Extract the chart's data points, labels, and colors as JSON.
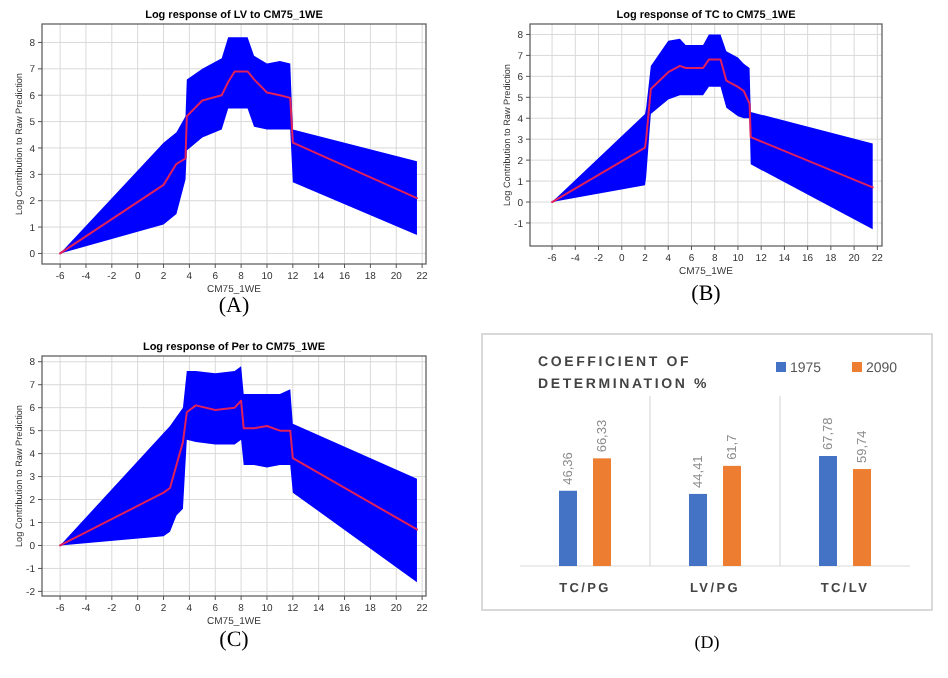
{
  "chart_data": [
    {
      "type": "line",
      "title": "Log response of LV to CM75_1WE",
      "xlabel": "CM75_1WE",
      "ylabel": "Log Contribution to Raw Prediction",
      "annotations": [
        "(A)"
      ],
      "xlim": [
        -7.4,
        22.3
      ],
      "ylim": [
        -0.4,
        8.7
      ],
      "xticks": [
        -6,
        -4,
        -2,
        0,
        2,
        4,
        6,
        8,
        10,
        12,
        14,
        16,
        18,
        20,
        22
      ],
      "yticks": [
        0,
        1,
        2,
        3,
        4,
        5,
        6,
        7,
        8
      ],
      "grid": true,
      "x": [
        -6,
        2,
        3,
        3.7,
        3.8,
        5,
        6.5,
        7,
        7.5,
        8.5,
        9,
        10,
        11,
        11.8,
        12,
        21.6
      ],
      "series": [
        {
          "color": "#e0205a",
          "values": [
            0,
            2.6,
            3.4,
            3.6,
            5.2,
            5.8,
            6.0,
            6.5,
            6.9,
            6.9,
            6.6,
            6.1,
            6.0,
            5.9,
            4.2,
            2.1
          ],
          "upper": [
            0,
            4.2,
            4.6,
            5.2,
            6.6,
            7.0,
            7.4,
            8.2,
            8.2,
            8.2,
            7.5,
            7.2,
            7.3,
            7.2,
            4.7,
            3.5
          ],
          "lower": [
            0,
            1.1,
            1.5,
            2.8,
            3.9,
            4.4,
            4.7,
            5.5,
            5.5,
            5.5,
            4.8,
            4.7,
            4.7,
            4.7,
            2.7,
            0.7
          ]
        }
      ]
    },
    {
      "type": "line",
      "title": "Log response of TC to CM75_1WE",
      "xlabel": "CM75_1WE",
      "ylabel": "Log Contribution to Raw Prediction",
      "annotations": [
        "(B)"
      ],
      "xlim": [
        -7.9,
        22.4
      ],
      "ylim": [
        -2.1,
        8.5
      ],
      "xticks": [
        -6,
        -4,
        -2,
        0,
        2,
        4,
        6,
        8,
        10,
        12,
        14,
        16,
        18,
        20,
        22
      ],
      "yticks": [
        -1,
        0,
        1,
        2,
        3,
        4,
        5,
        6,
        7,
        8
      ],
      "grid": true,
      "x": [
        -6,
        2,
        2.1,
        2.5,
        4,
        5,
        5.5,
        7,
        7.5,
        8.5,
        9,
        10,
        10.5,
        11,
        11.1,
        21.6
      ],
      "series": [
        {
          "color": "#e0205a",
          "values": [
            0,
            2.6,
            3.0,
            5.4,
            6.2,
            6.5,
            6.4,
            6.4,
            6.8,
            6.8,
            5.8,
            5.5,
            5.3,
            4.7,
            3.1,
            0.7
          ],
          "upper": [
            0,
            4.2,
            4.5,
            6.5,
            7.7,
            7.8,
            7.5,
            7.5,
            8.0,
            8.0,
            7.2,
            6.9,
            6.6,
            6.4,
            4.3,
            2.8
          ],
          "lower": [
            0,
            0.8,
            1.2,
            4.2,
            4.9,
            5.1,
            5.1,
            5.1,
            5.5,
            5.5,
            4.5,
            4.1,
            4.0,
            4.0,
            1.8,
            -1.3
          ]
        }
      ]
    },
    {
      "type": "line",
      "title": "Log response of Per to CM75_1WE",
      "xlabel": "CM75_1WE",
      "ylabel": "Log Contribution to Raw Prediction",
      "annotations": [
        "(C)"
      ],
      "xlim": [
        -7.4,
        22.3
      ],
      "ylim": [
        -2.2,
        8.25
      ],
      "xticks": [
        -6,
        -4,
        -2,
        0,
        2,
        4,
        6,
        8,
        10,
        12,
        14,
        16,
        18,
        20,
        22
      ],
      "yticks": [
        -2,
        -1,
        0,
        1,
        2,
        3,
        4,
        5,
        6,
        7,
        8
      ],
      "grid": true,
      "x": [
        -6,
        2,
        2.5,
        3,
        3.5,
        3.8,
        4.5,
        6,
        7.5,
        8,
        8.2,
        9,
        10,
        11,
        11.8,
        12,
        21.6
      ],
      "series": [
        {
          "color": "#e0205a",
          "values": [
            0,
            2.3,
            2.5,
            3.5,
            4.5,
            5.8,
            6.1,
            5.9,
            6.0,
            6.3,
            5.1,
            5.1,
            5.2,
            5.0,
            5.0,
            3.8,
            0.7
          ],
          "upper": [
            0,
            4.9,
            5.2,
            5.6,
            6.0,
            7.6,
            7.6,
            7.5,
            7.6,
            7.8,
            6.6,
            6.6,
            6.6,
            6.6,
            6.8,
            5.3,
            2.9
          ],
          "lower": [
            0,
            0.4,
            0.6,
            1.3,
            1.6,
            4.6,
            4.5,
            4.4,
            4.4,
            4.6,
            3.5,
            3.5,
            3.4,
            3.5,
            3.5,
            2.3,
            -1.6
          ]
        }
      ]
    },
    {
      "type": "bar",
      "title": "COEFFICIENT OF DETERMINATION %",
      "annotations": [
        "(D)"
      ],
      "categories": [
        "TC/PG",
        "LV/PG",
        "TC/LV"
      ],
      "legend": "top right",
      "grid": "x",
      "series": [
        {
          "name": "1975",
          "color": "#4472c4",
          "values": [
            46.36,
            44.41,
            67.78
          ],
          "value_labels": [
            "46,36",
            "44,41",
            "67,78"
          ]
        },
        {
          "name": "2090",
          "color": "#ed7d31",
          "values": [
            66.33,
            61.7,
            59.74
          ],
          "value_labels": [
            "66,33",
            "61,7",
            "59,74"
          ]
        }
      ]
    }
  ]
}
